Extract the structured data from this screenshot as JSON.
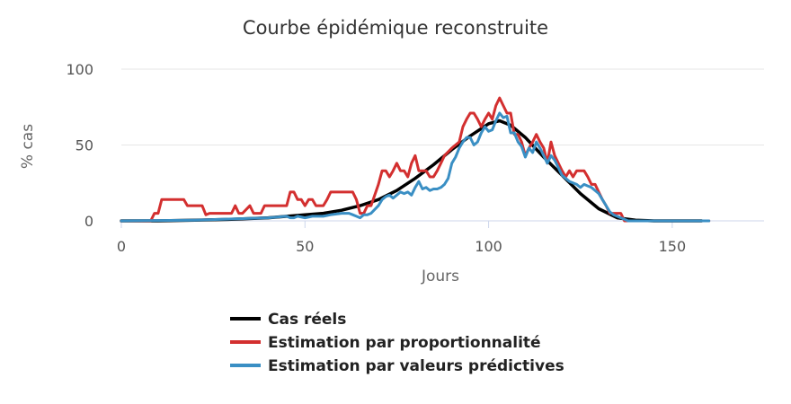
{
  "chart_data": {
    "type": "line",
    "title": "Courbe épidémique reconstruite",
    "xlabel": "Jours",
    "ylabel": "% cas",
    "xlim": [
      0,
      175
    ],
    "ylim": [
      0,
      100
    ],
    "xticks": [
      0,
      50,
      100,
      150
    ],
    "yticks": [
      0,
      50,
      100
    ],
    "grid": "horizontal",
    "legend_position": "bottom",
    "series": [
      {
        "name": "Cas réels",
        "color": "#000000",
        "x": [
          0,
          10,
          20,
          30,
          40,
          50,
          55,
          60,
          65,
          70,
          75,
          80,
          85,
          90,
          95,
          100,
          103,
          106,
          110,
          115,
          120,
          125,
          130,
          135,
          140,
          145,
          150,
          155,
          158
        ],
        "y": [
          0,
          0,
          0.5,
          1,
          2,
          4,
          5,
          7,
          10,
          14,
          20,
          28,
          37,
          47,
          56,
          64,
          66,
          63,
          55,
          42,
          30,
          18,
          8,
          2,
          0.5,
          0,
          0,
          0,
          0
        ]
      },
      {
        "name": "Estimation par proportionnalité",
        "color": "#d32f2f",
        "x": [
          0,
          8,
          9,
          10,
          11,
          15,
          17,
          18,
          22,
          23,
          24,
          25,
          30,
          31,
          32,
          33,
          35,
          36,
          37,
          38,
          39,
          40,
          45,
          46,
          47,
          48,
          49,
          50,
          51,
          52,
          53,
          55,
          56,
          57,
          58,
          62,
          63,
          64,
          65,
          66,
          67,
          68,
          70,
          71,
          72,
          73,
          74,
          75,
          76,
          77,
          78,
          79,
          80,
          81,
          82,
          83,
          84,
          85,
          86,
          87,
          88,
          90,
          92,
          93,
          94,
          95,
          96,
          97,
          98,
          99,
          100,
          101,
          102,
          103,
          104,
          105,
          106,
          107,
          108,
          109,
          110,
          111,
          112,
          113,
          114,
          115,
          116,
          117,
          118,
          119,
          120,
          121,
          122,
          123,
          124,
          125,
          126,
          127,
          128,
          129,
          130,
          131,
          132,
          133,
          134,
          135,
          136,
          137,
          138,
          140,
          160
        ],
        "y": [
          0,
          0,
          5,
          5,
          14,
          14,
          14,
          10,
          10,
          4,
          5,
          5,
          5,
          10,
          5,
          5,
          10,
          5,
          5,
          5,
          10,
          10,
          10,
          19,
          19,
          14,
          14,
          10,
          14,
          14,
          10,
          10,
          14,
          19,
          19,
          19,
          19,
          14,
          5,
          5,
          10,
          10,
          24,
          33,
          33,
          29,
          33,
          38,
          33,
          33,
          29,
          38,
          43,
          33,
          33,
          33,
          29,
          29,
          33,
          38,
          43,
          48,
          52,
          62,
          67,
          71,
          71,
          67,
          62,
          67,
          71,
          67,
          76,
          81,
          76,
          71,
          71,
          57,
          57,
          52,
          43,
          48,
          52,
          57,
          52,
          48,
          38,
          52,
          43,
          38,
          33,
          29,
          33,
          29,
          33,
          33,
          33,
          29,
          24,
          24,
          19,
          14,
          10,
          5,
          5,
          5,
          5,
          0,
          0,
          0,
          0
        ]
      },
      {
        "name": "Estimation par valeurs prédictives",
        "color": "#3a8fc4",
        "x": [
          0,
          20,
          40,
          45,
          46,
          47,
          48,
          50,
          52,
          55,
          57,
          60,
          62,
          63,
          64,
          65,
          66,
          67,
          68,
          70,
          71,
          72,
          73,
          74,
          75,
          76,
          77,
          78,
          79,
          80,
          81,
          82,
          83,
          84,
          85,
          86,
          87,
          88,
          89,
          90,
          91,
          92,
          93,
          94,
          95,
          96,
          97,
          98,
          99,
          100,
          101,
          102,
          103,
          104,
          105,
          106,
          107,
          108,
          109,
          110,
          111,
          112,
          113,
          114,
          115,
          116,
          117,
          118,
          119,
          120,
          121,
          122,
          123,
          124,
          125,
          126,
          127,
          128,
          129,
          130,
          131,
          132,
          133,
          134,
          135,
          136,
          137,
          138,
          140,
          160
        ],
        "y": [
          0,
          0.5,
          2,
          3,
          2,
          2,
          3,
          2,
          3,
          3,
          4,
          5,
          5,
          4,
          3,
          2,
          4,
          4,
          5,
          10,
          14,
          16,
          17,
          15,
          17,
          19,
          18,
          19,
          17,
          22,
          26,
          21,
          22,
          20,
          21,
          21,
          22,
          24,
          28,
          38,
          42,
          48,
          52,
          55,
          55,
          50,
          52,
          58,
          62,
          59,
          60,
          66,
          71,
          68,
          69,
          58,
          58,
          52,
          49,
          42,
          48,
          45,
          52,
          48,
          43,
          38,
          43,
          40,
          35,
          30,
          28,
          26,
          25,
          24,
          22,
          24,
          23,
          22,
          20,
          18,
          14,
          10,
          6,
          4,
          3,
          2,
          1,
          0,
          0,
          0
        ]
      }
    ]
  }
}
